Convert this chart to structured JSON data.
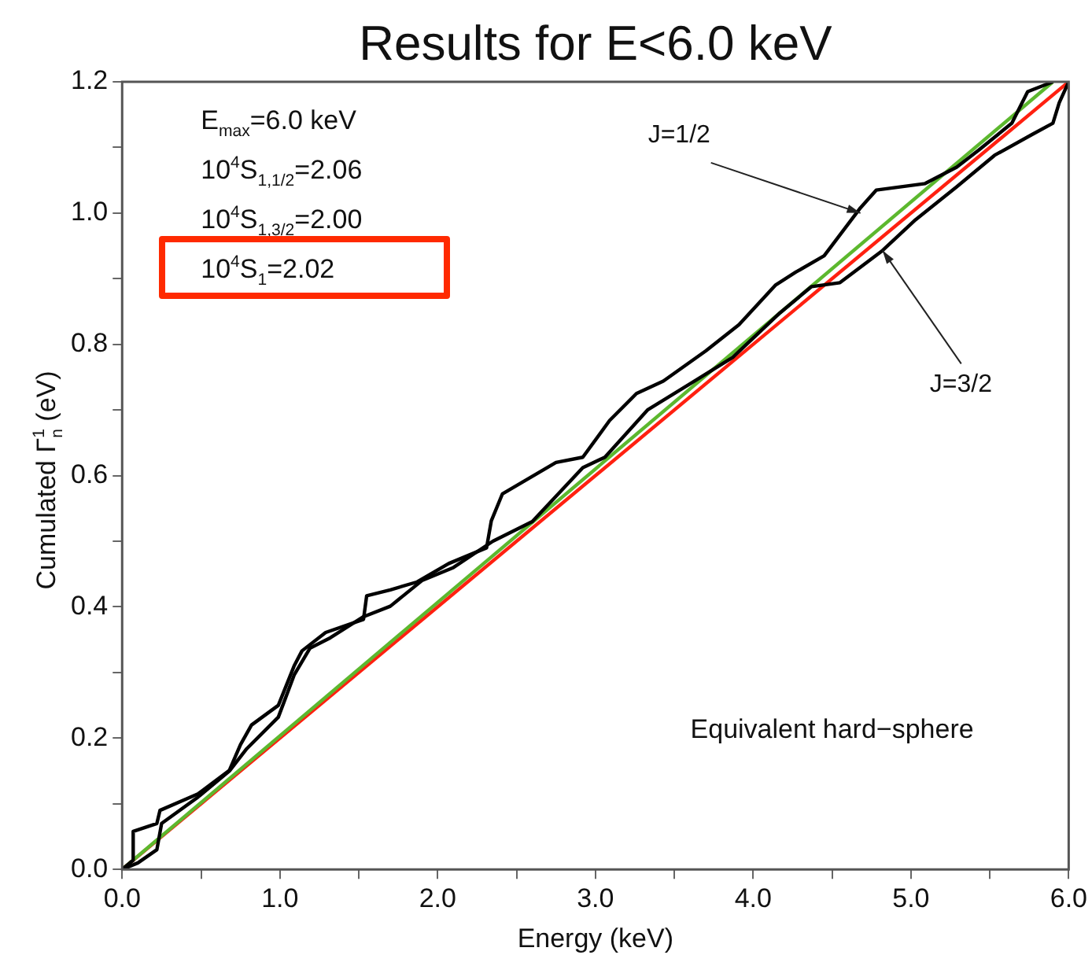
{
  "chart_data": {
    "type": "line",
    "title": "Results for E<6.0 keV",
    "xlabel": "Energy (keV)",
    "ylabel": "Cumulated Γ$^{1}$$_{n}$ (eV)",
    "xlim": [
      0,
      6
    ],
    "ylim": [
      0,
      1.2
    ],
    "xticks": [
      {
        "value": 0,
        "label": "0.0"
      },
      {
        "value": 0.5,
        "label": null
      },
      {
        "value": 1,
        "label": "1.0"
      },
      {
        "value": 1.5,
        "label": null
      },
      {
        "value": 2,
        "label": "2.0"
      },
      {
        "value": 2.5,
        "label": null
      },
      {
        "value": 3,
        "label": "3.0"
      },
      {
        "value": 3.5,
        "label": null
      },
      {
        "value": 4,
        "label": "4.0"
      },
      {
        "value": 4.5,
        "label": null
      },
      {
        "value": 5,
        "label": "5.0"
      },
      {
        "value": 5.5,
        "label": null
      },
      {
        "value": 6,
        "label": "6.0"
      }
    ],
    "yticks": [
      {
        "value": 0,
        "label": "0.0"
      },
      {
        "value": 0.1,
        "label": null
      },
      {
        "value": 0.2,
        "label": "0.2"
      },
      {
        "value": 0.3,
        "label": null
      },
      {
        "value": 0.4,
        "label": "0.4"
      },
      {
        "value": 0.5,
        "label": null
      },
      {
        "value": 0.6,
        "label": "0.6"
      },
      {
        "value": 0.7,
        "label": null
      },
      {
        "value": 0.8,
        "label": "0.8"
      },
      {
        "value": 0.9,
        "label": null
      },
      {
        "value": 1.0,
        "label": "1.0"
      },
      {
        "value": 1.1,
        "label": null
      },
      {
        "value": 1.2,
        "label": "1.2"
      }
    ],
    "grid": false,
    "legend": false,
    "marker": "none",
    "line_style": "solid",
    "series": [
      {
        "color": "#000000",
        "x": [
          0,
          0.07,
          0.07,
          0.22,
          0.24,
          0.48,
          0.68,
          0.75,
          0.82,
          0.99,
          1.09,
          1.14,
          1.29,
          1.53,
          1.55,
          1.7,
          1.87,
          2.07,
          2.31,
          2.34,
          2.41,
          2.75,
          2.92,
          3.09,
          3.26,
          3.43,
          3.7,
          3.91,
          4.14,
          4.27,
          4.45,
          4.68,
          4.78,
          5.09,
          5.29,
          5.43,
          5.64,
          5.74,
          5.9
        ],
        "values": [
          0,
          0.014,
          0.058,
          0.07,
          0.09,
          0.115,
          0.151,
          0.19,
          0.22,
          0.25,
          0.31,
          0.333,
          0.361,
          0.381,
          0.417,
          0.426,
          0.438,
          0.466,
          0.49,
          0.531,
          0.572,
          0.62,
          0.628,
          0.684,
          0.725,
          0.744,
          0.79,
          0.83,
          0.89,
          0.91,
          0.935,
          1.008,
          1.035,
          1.045,
          1.07,
          1.096,
          1.137,
          1.185,
          1.2
        ]
      },
      {
        "color": "#000000",
        "x": [
          0,
          0.1,
          0.22,
          0.25,
          0.48,
          0.68,
          0.79,
          0.99,
          1.09,
          1.19,
          1.32,
          1.53,
          1.7,
          1.9,
          2.1,
          2.35,
          2.6,
          2.92,
          3.06,
          3.33,
          3.6,
          3.87,
          4.17,
          4.37,
          4.55,
          4.82,
          5.03,
          5.29,
          5.53,
          5.77,
          5.9,
          5.94,
          6.0
        ],
        "values": [
          0,
          0.01,
          0.03,
          0.07,
          0.11,
          0.15,
          0.184,
          0.232,
          0.296,
          0.337,
          0.353,
          0.385,
          0.401,
          0.44,
          0.46,
          0.5,
          0.53,
          0.612,
          0.628,
          0.7,
          0.74,
          0.78,
          0.848,
          0.888,
          0.894,
          0.943,
          0.99,
          1.04,
          1.088,
          1.12,
          1.137,
          1.168,
          1.2
        ]
      },
      {
        "color": "#5cb82e",
        "x": [
          0,
          5.9
        ],
        "values": [
          0,
          1.2
        ]
      },
      {
        "color": "#ff2010",
        "x": [
          0,
          6
        ],
        "values": [
          0,
          1.2
        ]
      }
    ],
    "annotations": [
      "E$_{max}$=6.0 keV",
      "10$^{4}$S$_{1,1/2}$=2.06",
      "10$^{4}$S$_{1,3/2}$=2.00",
      "10$^{4}$S$_{1}$=2.02",
      "Equivalent hard−sphere",
      {
        "text": "J=1/2",
        "x": 4.68,
        "y": 1.0
      },
      {
        "text": "J=3/2",
        "x": 4.82,
        "y": 0.943
      }
    ]
  }
}
